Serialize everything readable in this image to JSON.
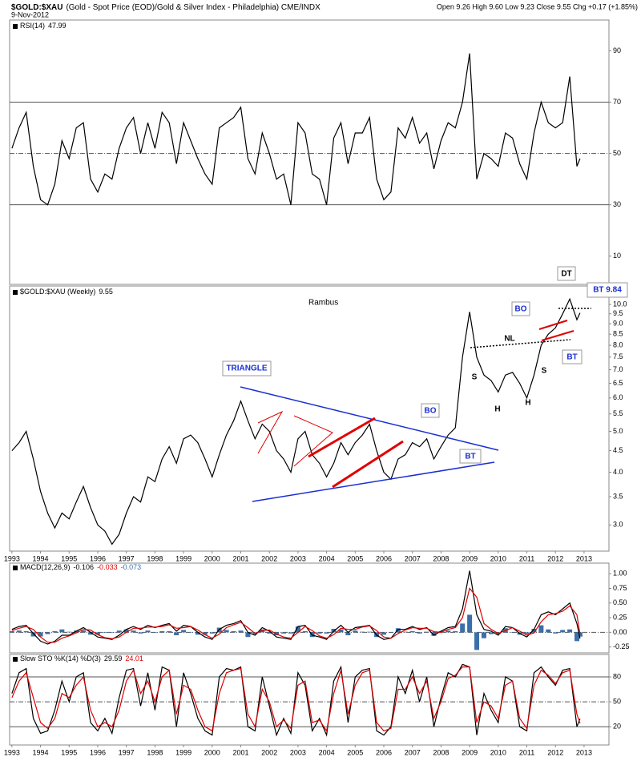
{
  "header": {
    "symbol": "$GOLD:$XAU",
    "description": "(Gold - Spot Price (EOD)/Gold & Silver Index - Philadelphia) CME/INDX",
    "date": "9-Nov-2012",
    "quote": "Open 9.26  High 9.60  Low 9.23  Close 9.55  Chg +0.17 (+1.85%)"
  },
  "chart_data": [
    {
      "type": "line",
      "last_value": 47.99,
      "x": [
        1993,
        1993.25,
        1993.5,
        1993.75,
        1994,
        1994.25,
        1994.5,
        1994.75,
        1995,
        1995.25,
        1995.5,
        1995.75,
        1996,
        1996.25,
        1996.5,
        1996.75,
        1997,
        1997.25,
        1997.5,
        1997.75,
        1998,
        1998.25,
        1998.5,
        1998.75,
        1999,
        1999.25,
        1999.5,
        1999.75,
        2000,
        2000.25,
        2000.5,
        2000.75,
        2001,
        2001.25,
        2001.5,
        2001.75,
        2002,
        2002.25,
        2002.5,
        2002.75,
        2003,
        2003.25,
        2003.5,
        2003.75,
        2004,
        2004.25,
        2004.5,
        2004.75,
        2005,
        2005.25,
        2005.5,
        2005.75,
        2006,
        2006.25,
        2006.5,
        2006.75,
        2007,
        2007.25,
        2007.5,
        2007.75,
        2008,
        2008.25,
        2008.5,
        2008.75,
        2009,
        2009.25,
        2009.5,
        2009.75,
        2010,
        2010.25,
        2010.5,
        2010.75,
        2011,
        2011.25,
        2011.5,
        2011.75,
        2012,
        2012.25,
        2012.5,
        2012.75,
        2012.86
      ],
      "series": [
        {
          "name": "RSI(14)",
          "color": "#000000",
          "values": [
            52,
            60,
            66,
            45,
            32,
            30,
            38,
            55,
            48,
            60,
            62,
            40,
            35,
            42,
            40,
            52,
            60,
            64,
            50,
            62,
            52,
            66,
            62,
            46,
            62,
            55,
            48,
            42,
            38,
            60,
            62,
            64,
            68,
            48,
            42,
            58,
            50,
            40,
            42,
            30,
            62,
            58,
            42,
            40,
            30,
            56,
            62,
            46,
            58,
            58,
            64,
            40,
            32,
            35,
            60,
            56,
            64,
            54,
            58,
            44,
            55,
            62,
            60,
            70,
            89,
            40,
            50,
            48,
            45,
            58,
            56,
            46,
            40,
            58,
            70,
            62,
            60,
            62,
            80,
            45,
            48
          ]
        }
      ],
      "xlim": [
        1992.92,
        2013.87
      ],
      "ylim": [
        -1,
        102
      ],
      "yticks": [
        10,
        30,
        50,
        70,
        90
      ],
      "ref_lines": [
        {
          "value": 30,
          "style": "solid"
        },
        {
          "value": 50,
          "style": "dashdot"
        },
        {
          "value": 70,
          "style": "solid"
        }
      ]
    },
    {
      "type": "line",
      "last_value": 9.55,
      "log_y": true,
      "x": [
        1993,
        1993.25,
        1993.5,
        1993.75,
        1994,
        1994.25,
        1994.5,
        1994.75,
        1995,
        1995.25,
        1995.5,
        1995.75,
        1996,
        1996.25,
        1996.5,
        1996.75,
        1997,
        1997.25,
        1997.5,
        1997.75,
        1998,
        1998.25,
        1998.5,
        1998.75,
        1999,
        1999.25,
        1999.5,
        1999.75,
        2000,
        2000.25,
        2000.5,
        2000.75,
        2001,
        2001.25,
        2001.5,
        2001.75,
        2002,
        2002.25,
        2002.5,
        2002.75,
        2003,
        2003.25,
        2003.5,
        2003.75,
        2004,
        2004.25,
        2004.5,
        2004.75,
        2005,
        2005.25,
        2005.5,
        2005.75,
        2006,
        2006.25,
        2006.5,
        2006.75,
        2007,
        2007.25,
        2007.5,
        2007.75,
        2008,
        2008.25,
        2008.5,
        2008.75,
        2009,
        2009.25,
        2009.5,
        2009.75,
        2010,
        2010.25,
        2010.5,
        2010.75,
        2011,
        2011.25,
        2011.5,
        2011.75,
        2012,
        2012.25,
        2012.5,
        2012.75,
        2012.86
      ],
      "series": [
        {
          "name": "$GOLD:$XAU (Weekly)",
          "color": "#000000",
          "values": [
            4.5,
            4.7,
            5.0,
            4.3,
            3.6,
            3.2,
            2.95,
            3.2,
            3.1,
            3.4,
            3.7,
            3.3,
            3.0,
            2.9,
            2.7,
            2.85,
            3.2,
            3.5,
            3.4,
            3.9,
            3.8,
            4.3,
            4.6,
            4.2,
            4.8,
            4.9,
            4.7,
            4.3,
            3.9,
            4.4,
            4.9,
            5.3,
            5.9,
            5.3,
            4.8,
            5.2,
            5.0,
            4.5,
            4.3,
            4.0,
            4.8,
            5.0,
            4.4,
            4.2,
            3.9,
            4.2,
            4.7,
            4.4,
            4.7,
            4.9,
            5.2,
            4.5,
            4.0,
            3.85,
            4.3,
            4.4,
            4.7,
            4.6,
            4.8,
            4.3,
            4.6,
            4.9,
            5.1,
            7.5,
            9.6,
            7.5,
            6.8,
            6.6,
            6.2,
            6.8,
            6.9,
            6.5,
            6.0,
            6.8,
            8.0,
            8.5,
            8.8,
            9.5,
            10.3,
            9.2,
            9.55
          ]
        }
      ],
      "xlim": [
        1992.92,
        2013.87
      ],
      "ylim": [
        2.6,
        11.06
      ],
      "yticks": [
        {
          "value": 3,
          "label": "3.0"
        },
        3.5,
        {
          "value": 4,
          "label": "4.0"
        },
        4.5,
        {
          "value": 5,
          "label": "5.0"
        },
        5.5,
        {
          "value": 6,
          "label": "6.0"
        },
        6.5,
        {
          "value": 7,
          "label": "7.0"
        },
        7.5,
        {
          "value": 8,
          "label": "8.0"
        },
        8.5,
        {
          "value": 9,
          "label": "9.0"
        },
        9.5,
        {
          "value": 10,
          "label": "10.0"
        }
      ],
      "xticks": [
        1993,
        1994,
        1995,
        1996,
        1997,
        1998,
        1999,
        2000,
        2001,
        2002,
        2003,
        2004,
        2005,
        2006,
        2007,
        2008,
        2009,
        2010,
        2011,
        2012,
        2013
      ],
      "annotations": [
        "Rambus",
        "TRIANGLE",
        "BO",
        "BO",
        "BT",
        "BT",
        "BT 9.84",
        "DT",
        "NL",
        "S",
        "S",
        "H",
        "H"
      ]
    },
    {
      "type": "line",
      "x": [
        1993,
        1993.25,
        1993.5,
        1993.75,
        1994,
        1994.25,
        1994.5,
        1994.75,
        1995,
        1995.25,
        1995.5,
        1995.75,
        1996,
        1996.25,
        1996.5,
        1996.75,
        1997,
        1997.25,
        1997.5,
        1997.75,
        1998,
        1998.25,
        1998.5,
        1998.75,
        1999,
        1999.25,
        1999.5,
        1999.75,
        2000,
        2000.25,
        2000.5,
        2000.75,
        2001,
        2001.25,
        2001.5,
        2001.75,
        2002,
        2002.25,
        2002.5,
        2002.75,
        2003,
        2003.25,
        2003.5,
        2003.75,
        2004,
        2004.25,
        2004.5,
        2004.75,
        2005,
        2005.25,
        2005.5,
        2005.75,
        2006,
        2006.25,
        2006.5,
        2006.75,
        2007,
        2007.25,
        2007.5,
        2007.75,
        2008,
        2008.25,
        2008.5,
        2008.75,
        2009,
        2009.25,
        2009.5,
        2009.75,
        2010,
        2010.25,
        2010.5,
        2010.75,
        2011,
        2011.25,
        2011.5,
        2011.75,
        2012,
        2012.25,
        2012.5,
        2012.75,
        2012.86
      ],
      "series": [
        {
          "name": "MACD(12,26,9)",
          "color": "#000000",
          "last_value": -0.106,
          "values": [
            0.05,
            0.1,
            0.12,
            -0.02,
            -0.15,
            -0.2,
            -0.15,
            -0.05,
            -0.05,
            0.02,
            0.08,
            0.0,
            -0.08,
            -0.1,
            -0.12,
            -0.05,
            0.05,
            0.1,
            0.05,
            0.12,
            0.08,
            0.12,
            0.15,
            0.02,
            0.12,
            0.1,
            0.0,
            -0.08,
            -0.12,
            0.05,
            0.12,
            0.15,
            0.2,
            0.0,
            -0.05,
            0.08,
            0.02,
            -0.08,
            -0.1,
            -0.12,
            0.1,
            0.12,
            -0.05,
            -0.08,
            -0.12,
            0.02,
            0.12,
            0.0,
            0.08,
            0.1,
            0.12,
            -0.05,
            -0.12,
            -0.1,
            0.05,
            0.05,
            0.1,
            0.05,
            0.08,
            -0.05,
            0.02,
            0.08,
            0.1,
            0.4,
            1.05,
            0.3,
            0.05,
            0.02,
            -0.05,
            0.1,
            0.08,
            -0.02,
            -0.08,
            0.05,
            0.3,
            0.35,
            0.3,
            0.4,
            0.5,
            0.15,
            -0.106
          ]
        },
        {
          "color": "#e00000",
          "last_value": -0.033,
          "values": [
            0.03,
            0.07,
            0.1,
            0.05,
            -0.08,
            -0.17,
            -0.17,
            -0.1,
            -0.06,
            -0.01,
            0.05,
            0.04,
            -0.04,
            -0.09,
            -0.11,
            -0.08,
            0.0,
            0.07,
            0.07,
            0.09,
            0.09,
            0.1,
            0.13,
            0.07,
            0.08,
            0.1,
            0.04,
            -0.04,
            -0.1,
            -0.03,
            0.08,
            0.13,
            0.17,
            0.08,
            -0.02,
            0.03,
            0.04,
            -0.03,
            -0.08,
            -0.1,
            0.0,
            0.1,
            0.03,
            -0.06,
            -0.1,
            -0.04,
            0.07,
            0.05,
            0.05,
            0.09,
            0.11,
            0.03,
            -0.08,
            -0.1,
            -0.02,
            0.04,
            0.08,
            0.07,
            0.07,
            0.01,
            0.0,
            0.05,
            0.08,
            0.25,
            0.75,
            0.6,
            0.15,
            0.05,
            -0.02,
            0.03,
            0.08,
            0.02,
            -0.05,
            -0.01,
            0.18,
            0.3,
            0.32,
            0.36,
            0.45,
            0.3,
            -0.033
          ]
        },
        {
          "type": "histogram",
          "color": "#3a6fa8",
          "last_value": -0.073,
          "values": [
            0.02,
            0.03,
            0.02,
            -0.07,
            -0.07,
            -0.03,
            0.02,
            0.05,
            0.01,
            0.03,
            0.03,
            -0.04,
            -0.04,
            -0.01,
            -0.01,
            0.03,
            0.05,
            0.03,
            -0.02,
            0.03,
            -0.01,
            0.02,
            0.02,
            -0.05,
            0.04,
            0.0,
            -0.04,
            -0.04,
            -0.02,
            0.08,
            0.04,
            0.02,
            0.03,
            -0.08,
            -0.03,
            0.05,
            -0.02,
            -0.05,
            -0.02,
            -0.02,
            0.1,
            0.02,
            -0.08,
            -0.02,
            -0.02,
            0.06,
            0.05,
            -0.05,
            0.03,
            0.01,
            0.01,
            -0.08,
            -0.04,
            0.0,
            0.07,
            0.01,
            0.02,
            -0.02,
            0.01,
            -0.06,
            0.02,
            0.03,
            0.02,
            0.15,
            0.3,
            -0.3,
            -0.1,
            -0.03,
            -0.03,
            0.07,
            0.0,
            -0.04,
            -0.03,
            0.06,
            0.12,
            0.05,
            -0.02,
            0.04,
            0.05,
            -0.15,
            -0.073
          ]
        }
      ],
      "xlim": [
        1992.92,
        2013.87
      ],
      "ylim": [
        -0.35,
        1.18
      ],
      "yticks": [
        -0.25,
        {
          "value": 0,
          "label": "0.00"
        },
        0.25,
        {
          "value": 0.5,
          "label": "0.50"
        },
        0.75,
        {
          "value": 1,
          "label": "1.00"
        }
      ],
      "ref_lines": [
        {
          "value": 0,
          "style": "dashdot"
        }
      ]
    },
    {
      "type": "line",
      "x": [
        1993,
        1993.25,
        1993.5,
        1993.75,
        1994,
        1994.25,
        1994.5,
        1994.75,
        1995,
        1995.25,
        1995.5,
        1995.75,
        1996,
        1996.25,
        1996.5,
        1996.75,
        1997,
        1997.25,
        1997.5,
        1997.75,
        1998,
        1998.25,
        1998.5,
        1998.75,
        1999,
        1999.25,
        1999.5,
        1999.75,
        2000,
        2000.25,
        2000.5,
        2000.75,
        2001,
        2001.25,
        2001.5,
        2001.75,
        2002,
        2002.25,
        2002.5,
        2002.75,
        2003,
        2003.25,
        2003.5,
        2003.75,
        2004,
        2004.25,
        2004.5,
        2004.75,
        2005,
        2005.25,
        2005.5,
        2005.75,
        2006,
        2006.25,
        2006.5,
        2006.75,
        2007,
        2007.25,
        2007.5,
        2007.75,
        2008,
        2008.25,
        2008.5,
        2008.75,
        2009,
        2009.25,
        2009.5,
        2009.75,
        2010,
        2010.25,
        2010.5,
        2010.75,
        2011,
        2011.25,
        2011.5,
        2011.75,
        2012,
        2012.25,
        2012.5,
        2012.75,
        2012.86
      ],
      "series": [
        {
          "name": "Slow STO %K(14) %D(3)",
          "color": "#000000",
          "last_value": 29.59,
          "values": [
            60,
            85,
            90,
            30,
            12,
            15,
            40,
            75,
            50,
            80,
            85,
            25,
            15,
            30,
            12,
            55,
            88,
            90,
            45,
            85,
            40,
            92,
            88,
            20,
            85,
            60,
            30,
            15,
            10,
            80,
            90,
            88,
            92,
            20,
            15,
            80,
            45,
            10,
            30,
            12,
            85,
            70,
            15,
            30,
            10,
            75,
            92,
            25,
            80,
            88,
            90,
            15,
            10,
            20,
            80,
            60,
            88,
            50,
            80,
            20,
            55,
            85,
            80,
            95,
            92,
            10,
            60,
            40,
            25,
            80,
            75,
            20,
            15,
            85,
            92,
            80,
            70,
            88,
            90,
            20,
            29.59
          ]
        },
        {
          "color": "#e00000",
          "last_value": 24.01,
          "values": [
            55,
            75,
            85,
            55,
            25,
            18,
            30,
            60,
            55,
            70,
            80,
            40,
            20,
            25,
            20,
            40,
            75,
            88,
            60,
            75,
            50,
            80,
            88,
            35,
            70,
            65,
            40,
            20,
            15,
            60,
            85,
            88,
            90,
            35,
            20,
            65,
            50,
            20,
            28,
            18,
            70,
            75,
            25,
            28,
            15,
            60,
            88,
            35,
            70,
            85,
            88,
            25,
            15,
            18,
            65,
            65,
            80,
            60,
            75,
            30,
            50,
            78,
            82,
            92,
            92,
            25,
            50,
            45,
            30,
            70,
            75,
            30,
            18,
            70,
            88,
            82,
            72,
            85,
            88,
            35,
            24.01
          ]
        }
      ],
      "xlim": [
        1992.92,
        2013.87
      ],
      "ylim": [
        -2,
        107
      ],
      "yticks": [
        20,
        50,
        80
      ],
      "xticks": [
        1993,
        1994,
        1995,
        1996,
        1997,
        1998,
        1999,
        2000,
        2001,
        2002,
        2003,
        2004,
        2005,
        2006,
        2007,
        2008,
        2009,
        2010,
        2011,
        2012,
        2013
      ],
      "ref_lines": [
        {
          "value": 20,
          "style": "solid"
        },
        {
          "value": 50,
          "style": "dashdot"
        },
        {
          "value": 80,
          "style": "solid"
        }
      ]
    }
  ]
}
